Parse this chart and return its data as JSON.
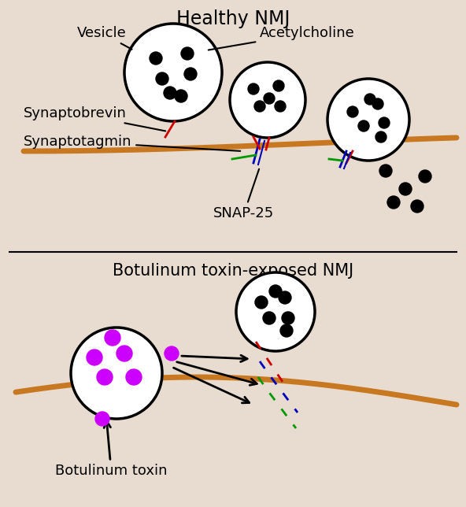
{
  "bg_color": "#e8dbd0",
  "title_healthy": "Healthy NMJ",
  "title_botulinum": "Botulinum toxin-exposed NMJ",
  "label_vesicle": "Vesicle",
  "label_acetylcholine": "Acetylcholine",
  "label_synaptobrevin": "Synaptobrevin",
  "label_synaptotagmin": "Synaptotagmin",
  "label_snap25": "SNAP-25",
  "label_botulinum": "Botulinum toxin",
  "membrane_color": "#c87820",
  "red_color": "#cc0000",
  "blue_color": "#0000bb",
  "green_color": "#009900",
  "purple_color": "#cc00ff",
  "black": "#000000"
}
